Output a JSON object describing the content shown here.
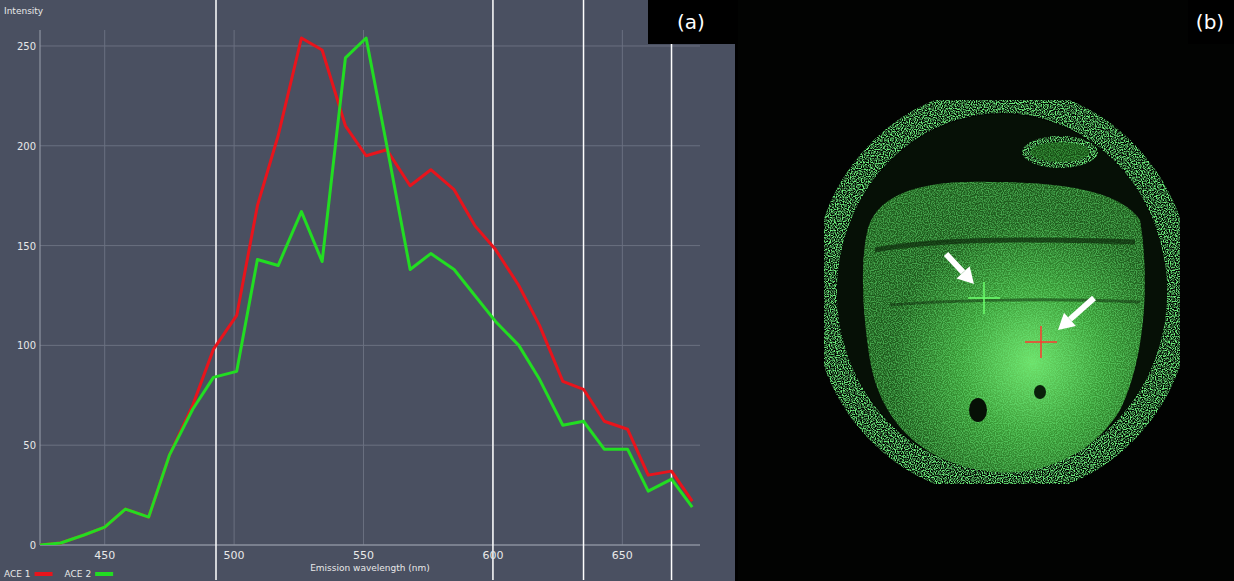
{
  "chart_data": {
    "type": "line",
    "y_label": "Intensity",
    "x_label": "Emission wavelength (nm)",
    "x": [
      425,
      433,
      442,
      450,
      458,
      467,
      475,
      484,
      492,
      501,
      509,
      517,
      526,
      534,
      543,
      551,
      559,
      568,
      576,
      585,
      593,
      601,
      610,
      618,
      627,
      635,
      643,
      652,
      660,
      669,
      677
    ],
    "series": [
      {
        "name": "ACE 1",
        "color": "#e8141c",
        "values": [
          0,
          1,
          5,
          9,
          18,
          14,
          45,
          70,
          98,
          115,
          170,
          205,
          254,
          248,
          210,
          195,
          198,
          180,
          188,
          178,
          160,
          148,
          130,
          110,
          82,
          78,
          62,
          58,
          35,
          37,
          22
        ]
      },
      {
        "name": "ACE 2",
        "color": "#22dd22",
        "values": [
          0,
          1,
          5,
          9,
          18,
          14,
          45,
          68,
          84,
          87,
          143,
          140,
          167,
          142,
          244,
          254,
          200,
          138,
          146,
          138,
          125,
          112,
          100,
          83,
          60,
          62,
          48,
          48,
          27,
          33,
          19
        ]
      }
    ],
    "xlim": [
      425,
      680
    ],
    "ylim": [
      0,
      258
    ],
    "xticks": [
      450,
      500,
      550,
      600,
      650
    ],
    "yticks": [
      0,
      50,
      100,
      150,
      200,
      250
    ],
    "channel_boundaries": [
      493,
      600,
      635,
      669
    ],
    "grid": true,
    "legend": "bottom-left"
  },
  "panel_labels": [
    "(a)",
    "(b)"
  ]
}
